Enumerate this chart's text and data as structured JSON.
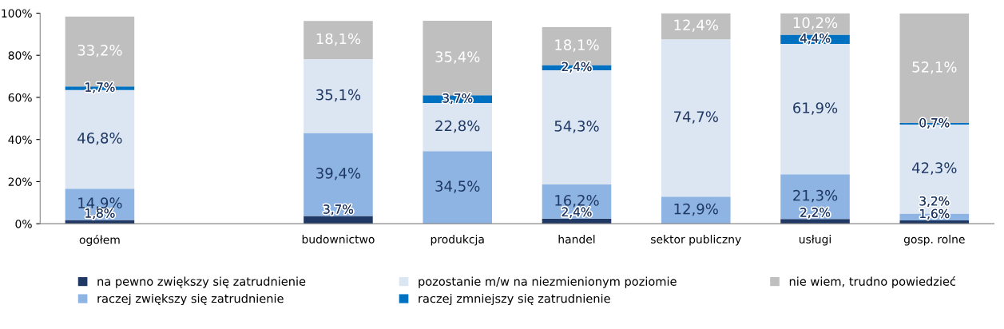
{
  "chart_data": {
    "type": "bar",
    "stacked": true,
    "categories": [
      "ogółem",
      null,
      "budownictwo",
      "produkcja",
      "handel",
      "sektor publiczny",
      "usługi",
      "gosp. rolne"
    ],
    "series": [
      {
        "name": "na pewno zwiększy się zatrudnienie",
        "color": "#1f3864",
        "values": [
          1.8,
          null,
          3.7,
          null,
          2.4,
          null,
          2.2,
          1.6
        ],
        "value_labels": [
          "1,8%",
          null,
          "3,7%",
          null,
          "2,4%",
          null,
          "2,2%",
          "1,6%"
        ]
      },
      {
        "name": "raczej zwiększy się zatrudnienie",
        "color": "#8eb4e3",
        "values": [
          14.9,
          null,
          39.4,
          34.5,
          16.2,
          12.9,
          21.3,
          3.2
        ],
        "value_labels": [
          "14,9%",
          null,
          "39,4%",
          "34,5%",
          "16,2%",
          "12,9%",
          "21,3%",
          "3,2%"
        ]
      },
      {
        "name": "pozostanie m/w na niezmienionym poziomie",
        "color": "#dce6f2",
        "values": [
          46.8,
          null,
          35.1,
          22.8,
          54.3,
          74.7,
          61.9,
          42.3
        ],
        "value_labels": [
          "46,8%",
          null,
          "35,1%",
          "22,8%",
          "54,3%",
          "74,7%",
          "61,9%",
          "42,3%"
        ]
      },
      {
        "name": "raczej zmniejszy się zatrudnienie",
        "color": "#0070c0",
        "values": [
          1.7,
          null,
          null,
          3.7,
          2.4,
          null,
          4.4,
          0.7
        ],
        "value_labels": [
          "1,7%",
          null,
          null,
          "3,7%",
          "2,4%",
          null,
          "4,4%",
          "0,7%"
        ]
      },
      {
        "name": "nie wiem, trudno powiedzieć",
        "color": "#bfbfbf",
        "values": [
          33.2,
          null,
          18.1,
          35.4,
          18.1,
          12.4,
          10.2,
          52.1
        ],
        "value_labels": [
          "33,2%",
          null,
          "18,1%",
          "35,4%",
          "18,1%",
          "12,4%",
          "10,2%",
          "52,1%"
        ]
      }
    ],
    "ylim": [
      0,
      100
    ],
    "yticks": [
      {
        "value": 0,
        "label": "0%"
      },
      {
        "value": 20,
        "label": "20%"
      },
      {
        "value": 40,
        "label": "40%"
      },
      {
        "value": 60,
        "label": "60%"
      },
      {
        "value": 80,
        "label": "80%"
      },
      {
        "value": 100,
        "label": "100%"
      }
    ],
    "legend": "bottom"
  }
}
